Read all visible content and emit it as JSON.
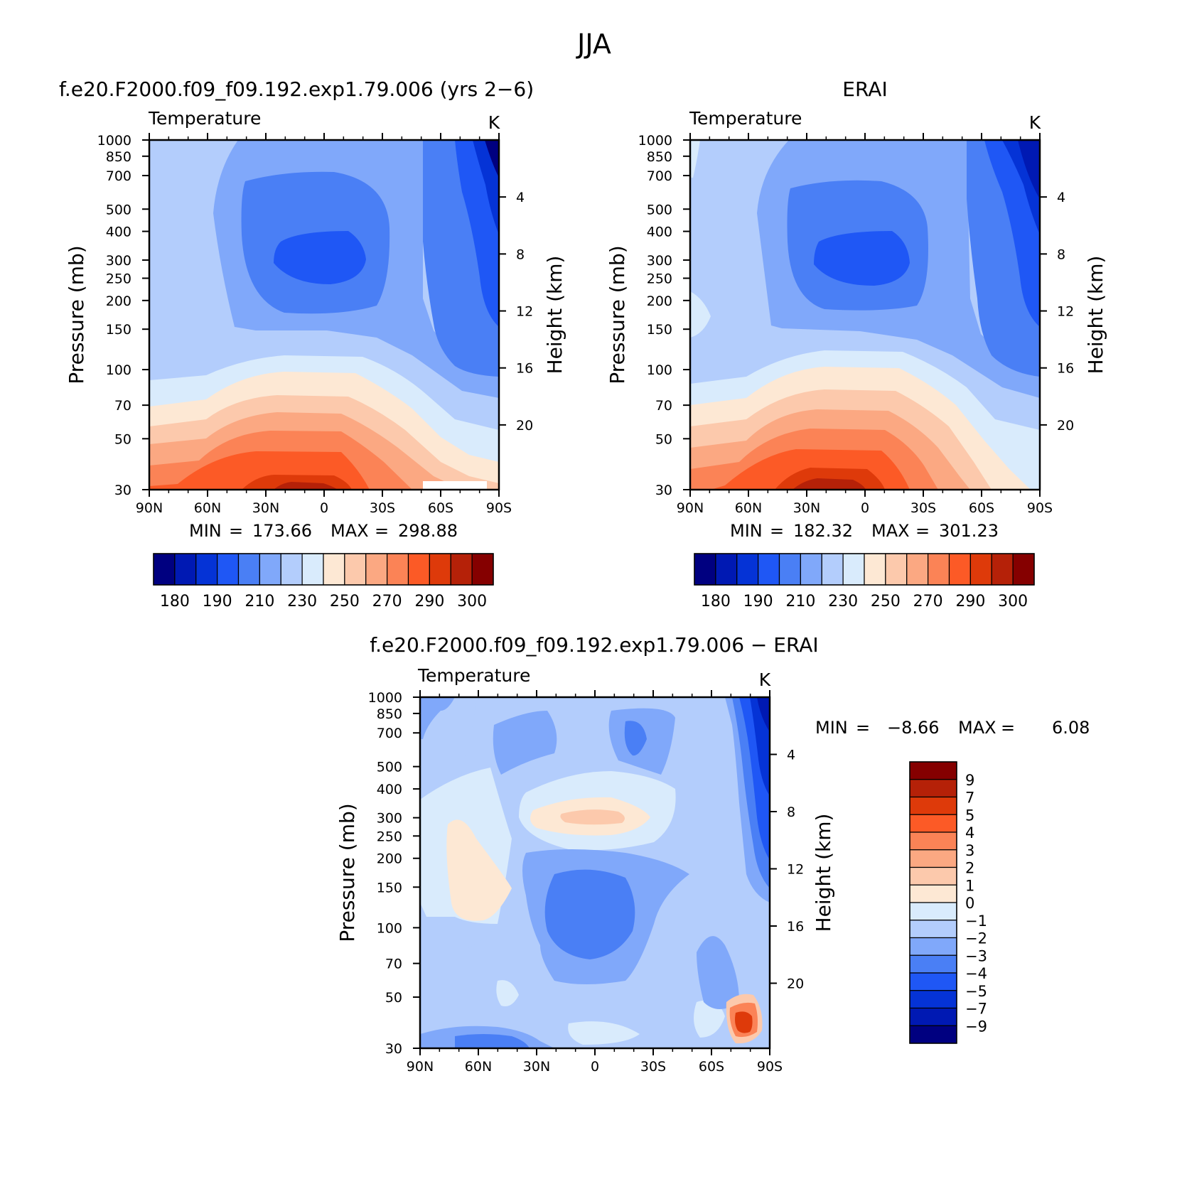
{
  "figure": {
    "title": "JJA"
  },
  "colors": {
    "abs_levels": [
      "#000080",
      "#0019b3",
      "#0533d6",
      "#1f57f5",
      "#4a7ff5",
      "#80a8fa",
      "#b3cdfc",
      "#d9ebfc",
      "#fde8d4",
      "#fcc9ac",
      "#fba882",
      "#fb8356",
      "#fc5a26",
      "#de3a0a",
      "#b52108",
      "#850000"
    ],
    "diff_levels": [
      "#000080",
      "#0019b3",
      "#0533d6",
      "#1f57f5",
      "#4a7ff5",
      "#80a8fa",
      "#b3cdfc",
      "#d9ebfc",
      "#fde8d4",
      "#fcc9ac",
      "#fba882",
      "#fb8356",
      "#fc5a26",
      "#de3a0a",
      "#b52108",
      "#850000"
    ]
  },
  "chart_data": [
    {
      "type": "contour",
      "title": "f.e20.F2000.f09_f09.192.exp1.79.006 (yrs 2−6)",
      "subtitle_left": "Temperature",
      "subtitle_right": "K",
      "xlabel": "",
      "ylabel": "Pressure (mb)",
      "ylabel_right": "Height (km)",
      "x_ticks": [
        "90N",
        "60N",
        "30N",
        "0",
        "30S",
        "60S",
        "90S"
      ],
      "y_ticks": [
        "30",
        "50",
        "70",
        "100",
        "150",
        "200",
        "250",
        "300",
        "400",
        "500",
        "700",
        "850",
        "1000"
      ],
      "y_right_ticks": [
        "4",
        "8",
        "12",
        "16",
        "20"
      ],
      "stats": {
        "min_label": "MIN",
        "min": "173.66",
        "max_label": "MAX",
        "max": "298.88",
        "eq": "="
      },
      "colorbar": {
        "orientation": "horizontal",
        "labels": [
          "180",
          "190",
          "210",
          "230",
          "250",
          "270",
          "290",
          "300"
        ]
      }
    },
    {
      "type": "contour",
      "title": "ERAI",
      "subtitle_left": "Temperature",
      "subtitle_right": "K",
      "xlabel": "",
      "ylabel": "Pressure (mb)",
      "ylabel_right": "Height (km)",
      "x_ticks": [
        "90N",
        "60N",
        "30N",
        "0",
        "30S",
        "60S",
        "90S"
      ],
      "y_ticks": [
        "30",
        "50",
        "70",
        "100",
        "150",
        "200",
        "250",
        "300",
        "400",
        "500",
        "700",
        "850",
        "1000"
      ],
      "y_right_ticks": [
        "4",
        "8",
        "12",
        "16",
        "20"
      ],
      "stats": {
        "min_label": "MIN",
        "min": "182.32",
        "max_label": "MAX",
        "max": "301.23",
        "eq": "="
      },
      "colorbar": {
        "orientation": "horizontal",
        "labels": [
          "180",
          "190",
          "210",
          "230",
          "250",
          "270",
          "290",
          "300"
        ]
      }
    },
    {
      "type": "contour",
      "title": "f.e20.F2000.f09_f09.192.exp1.79.006 − ERAI",
      "subtitle_left": "Temperature",
      "subtitle_right": "K",
      "xlabel": "",
      "ylabel": "Pressure (mb)",
      "ylabel_right": "Height (km)",
      "x_ticks": [
        "90N",
        "60N",
        "30N",
        "0",
        "30S",
        "60S",
        "90S"
      ],
      "y_ticks": [
        "30",
        "50",
        "70",
        "100",
        "150",
        "200",
        "250",
        "300",
        "400",
        "500",
        "700",
        "850",
        "1000"
      ],
      "y_right_ticks": [
        "4",
        "8",
        "12",
        "16",
        "20"
      ],
      "stats": {
        "min_label": "MIN",
        "min": "−8.66",
        "max_label": "MAX",
        "max": "6.08",
        "eq": "="
      },
      "colorbar": {
        "orientation": "vertical",
        "labels": [
          "9",
          "7",
          "5",
          "4",
          "3",
          "2",
          "1",
          "0",
          "−1",
          "−2",
          "−3",
          "−4",
          "−5",
          "−7",
          "−9"
        ]
      }
    }
  ]
}
